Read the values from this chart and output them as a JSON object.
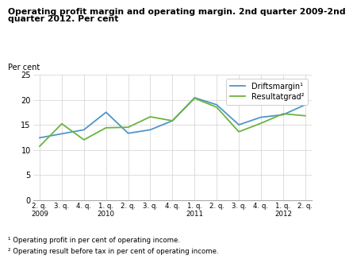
{
  "title_line1": "Operating profit margin and operating margin. 2nd quarter 2009-2nd",
  "title_line2": "quarter 2012. Per cent",
  "ylabel": "Per cent",
  "x_tick_labels_line1": [
    "2. q.",
    "3. q.",
    "4. q.",
    "1. q.",
    "2. q.",
    "3. q.",
    "4. q.",
    "1. q.",
    "2. q.",
    "3. q.",
    "4. q.",
    "1. q.",
    "2. q."
  ],
  "x_tick_labels_line2": [
    "2009",
    "",
    "",
    "2010",
    "",
    "",
    "",
    "2011",
    "",
    "",
    "",
    "2012",
    ""
  ],
  "driftsmargin": [
    12.4,
    13.2,
    14.0,
    17.5,
    13.3,
    14.0,
    15.8,
    20.4,
    19.0,
    15.0,
    16.5,
    17.0,
    19.0
  ],
  "resultatgrad": [
    10.7,
    15.2,
    12.0,
    14.4,
    14.5,
    16.6,
    15.8,
    20.3,
    18.5,
    13.6,
    15.3,
    17.2,
    16.8
  ],
  "driftsmargin_color": "#4E96C8",
  "resultatgrad_color": "#6DB33F",
  "ylim": [
    0,
    25
  ],
  "yticks": [
    0,
    5,
    10,
    15,
    20,
    25
  ],
  "footnote1": "¹ Operating profit in per cent of operating income.",
  "footnote2": "² Operating result before tax in per cent of operating income.",
  "legend_label1": "Driftsmargin¹",
  "legend_label2": "Resultatgrad²",
  "background_color": "#ffffff",
  "grid_color": "#d0d0d0"
}
